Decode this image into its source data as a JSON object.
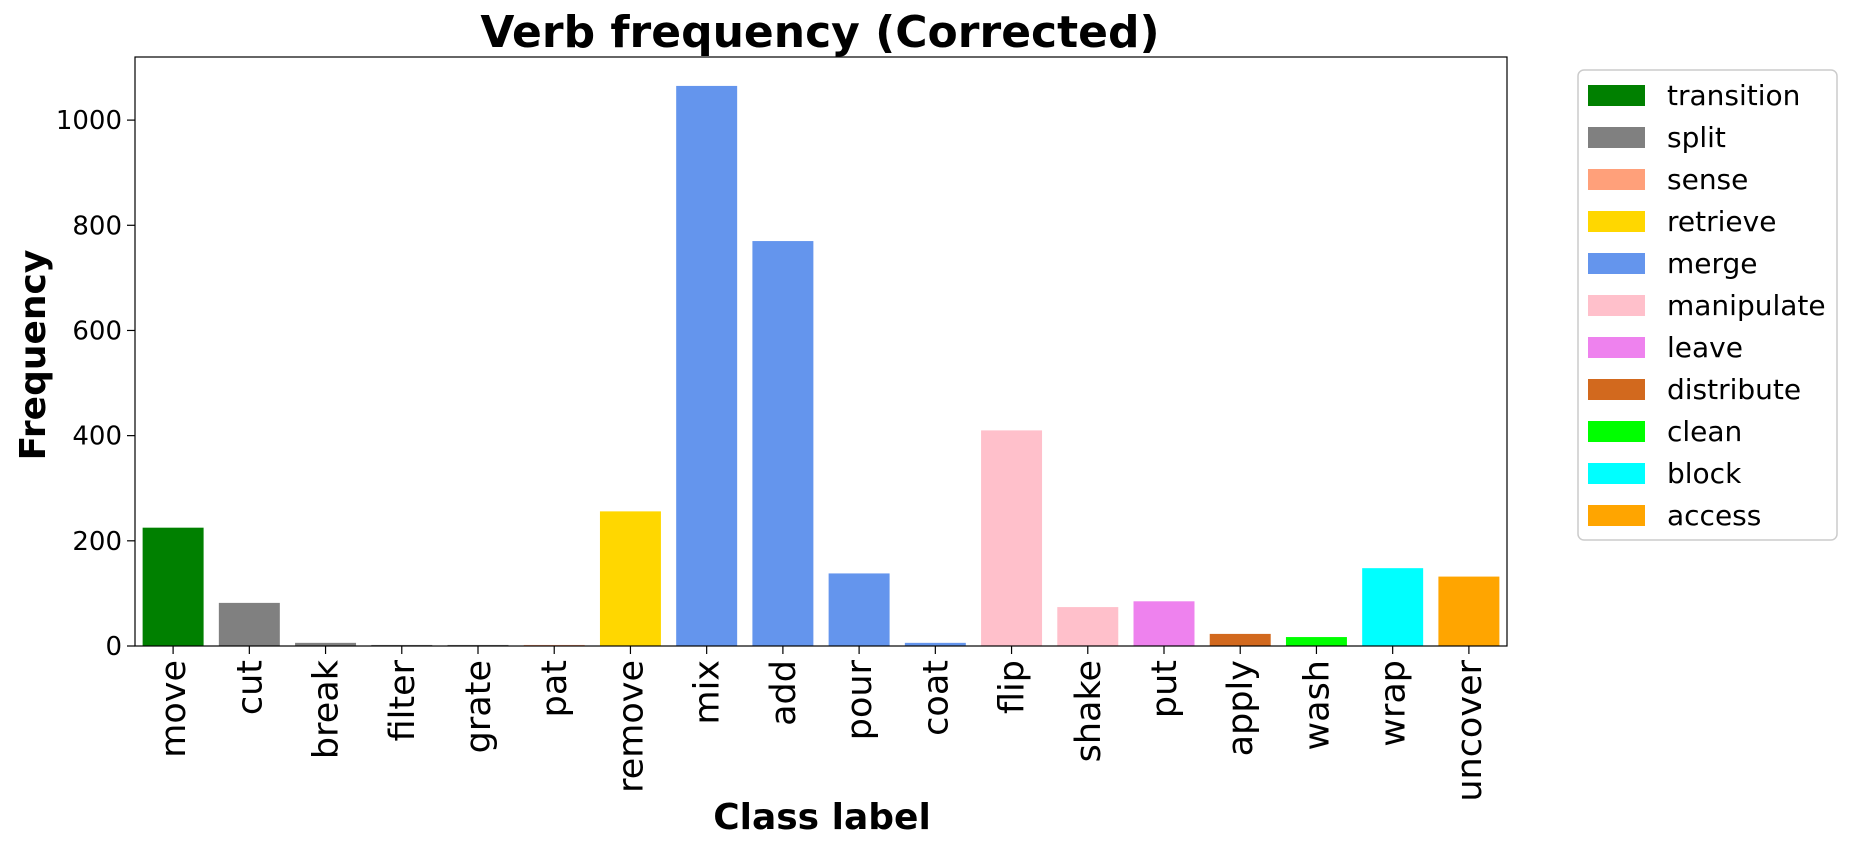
{
  "chart_data": {
    "type": "bar",
    "title": "Verb frequency (Corrected)",
    "xlabel": "Class label",
    "ylabel": "Frequency",
    "ylim": [
      0,
      1120
    ],
    "yticks": [
      0,
      200,
      400,
      600,
      800,
      1000
    ],
    "grid": false,
    "legend_position": "outside-right",
    "categories": [
      "move",
      "cut",
      "break",
      "filter",
      "grate",
      "pat",
      "remove",
      "mix",
      "add",
      "pour",
      "coat",
      "flip",
      "shake",
      "put",
      "apply",
      "wash",
      "wrap",
      "uncover"
    ],
    "values": [
      225,
      82,
      6,
      2,
      2,
      2,
      256,
      1065,
      770,
      138,
      6,
      410,
      74,
      85,
      23,
      17,
      148,
      132
    ],
    "bar_groups": [
      "transition",
      "split",
      "split",
      "split",
      "split",
      "sense",
      "retrieve",
      "merge",
      "merge",
      "merge",
      "merge",
      "manipulate",
      "manipulate",
      "leave",
      "distribute",
      "clean",
      "block",
      "access"
    ],
    "legend": [
      {
        "label": "transition",
        "color": "#008000"
      },
      {
        "label": "split",
        "color": "#808080"
      },
      {
        "label": "sense",
        "color": "#FFA07A"
      },
      {
        "label": "retrieve",
        "color": "#FFD700"
      },
      {
        "label": "merge",
        "color": "#6495ED"
      },
      {
        "label": "manipulate",
        "color": "#FFC0CB"
      },
      {
        "label": "leave",
        "color": "#EE82EE"
      },
      {
        "label": "distribute",
        "color": "#D2691E"
      },
      {
        "label": "clean",
        "color": "#00FF00"
      },
      {
        "label": "block",
        "color": "#00FFFF"
      },
      {
        "label": "access",
        "color": "#FFA500"
      }
    ]
  }
}
